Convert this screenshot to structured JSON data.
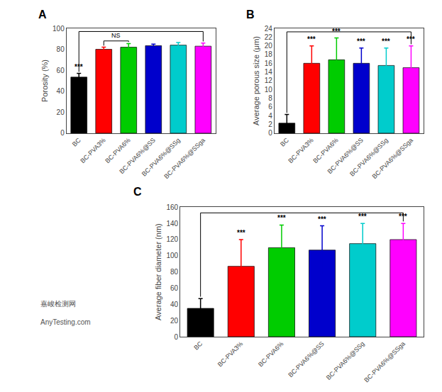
{
  "chart_data": [
    {
      "type": "bar",
      "title": "A",
      "categories": [
        "BC",
        "BC-PVA3%",
        "BC-PVA6%",
        "BC-PVA6%@SS",
        "BC-PVA6%@SSg",
        "BC-PVA6%@SSga"
      ],
      "colors": [
        "#000000",
        "#ff0000",
        "#00cc00",
        "#0000cc",
        "#00cccc",
        "#ff00ff"
      ],
      "ylabel": "Porosity (%)",
      "ylim": [
        0,
        100
      ],
      "yticks": [
        0,
        20,
        40,
        60,
        80,
        100
      ],
      "values": [
        53.5,
        80.0,
        82.0,
        83.5,
        84.0,
        83.0
      ],
      "errors": [
        3.5,
        2.0,
        3.5,
        1.5,
        2.5,
        3.0
      ],
      "sig_labels": [
        "***",
        null,
        null,
        null,
        null,
        null
      ],
      "brackets": [
        {
          "start": "BC",
          "end": "BC-PVA6%@SSga",
          "y": 97
        },
        {
          "start": "BC-PVA3%",
          "end": "BC-PVA6%",
          "y": 88.0,
          "label": "NS"
        }
      ],
      "grid": false
    },
    {
      "type": "bar",
      "title": "B",
      "categories": [
        "BC",
        "BC-PVA3%",
        "BC-PVA6%",
        "BC-PVA6%@SS",
        "BC-PVA6%@SSg",
        "BC-PVA6%@SSga"
      ],
      "colors": [
        "#000000",
        "#ff0000",
        "#00cc00",
        "#0000cc",
        "#00cccc",
        "#ff00ff"
      ],
      "ylabel": "Average porous size (μm)",
      "ylim": [
        0,
        24
      ],
      "yticks": [
        0,
        2,
        4,
        6,
        8,
        10,
        12,
        14,
        16,
        18,
        20,
        22,
        24
      ],
      "values": [
        2.3,
        16.0,
        16.8,
        16.0,
        15.5,
        15.0
      ],
      "errors": [
        2.0,
        4.0,
        5.0,
        3.5,
        4.0,
        5.0
      ],
      "sig_labels": [
        null,
        "***",
        "***",
        "***",
        "***",
        "***"
      ],
      "brackets": [
        {
          "start": "BC",
          "end": "BC-PVA6%@SSga",
          "y": 23.2
        }
      ],
      "grid": false
    },
    {
      "type": "bar",
      "title": "C",
      "categories": [
        "BC",
        "BC-PVA3%",
        "BC-PVA6%",
        "BC-PVA6%@SS",
        "BC-PVA6%@SSg",
        "BC-PVA6%@SSga"
      ],
      "colors": [
        "#000000",
        "#ff0000",
        "#00cc00",
        "#0000cc",
        "#00cccc",
        "#ff00ff"
      ],
      "ylabel": "Average fiber diameter (nm)",
      "ylim": [
        0,
        160
      ],
      "yticks": [
        0,
        20,
        40,
        60,
        80,
        100,
        120,
        140,
        160
      ],
      "values": [
        35.0,
        87.0,
        110.0,
        107.0,
        115.0,
        120.0
      ],
      "errors": [
        12.0,
        33.0,
        28.0,
        30.0,
        25.0,
        20.0
      ],
      "sig_labels": [
        null,
        "***",
        "***",
        "***",
        "***",
        "***"
      ],
      "brackets": [
        {
          "start": "BC",
          "end": "BC-PVA6%@SSga",
          "y": 153
        }
      ],
      "annotations": [
        "嘉峻检测网",
        "AnyTesting.com"
      ],
      "grid": false
    }
  ]
}
